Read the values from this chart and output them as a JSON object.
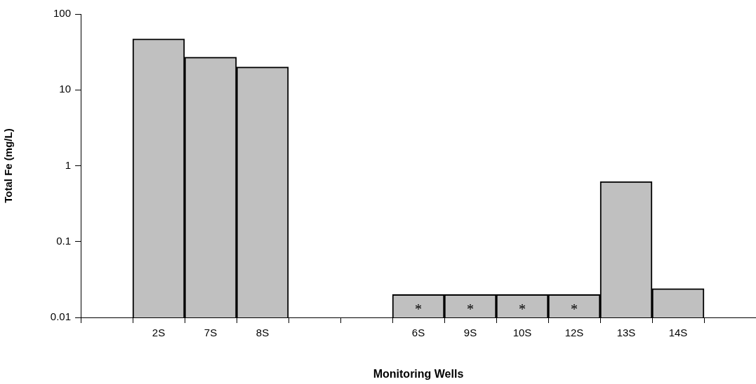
{
  "chart_data": {
    "type": "bar",
    "xlabel": "Monitoring Wells",
    "ylabel": "Total Fe (mg/L)",
    "categories": [
      null,
      "2S",
      "7S",
      "8S",
      null,
      null,
      "6S",
      "9S",
      "10S",
      "12S",
      "13S",
      "14S",
      null
    ],
    "values": [
      null,
      47,
      27,
      20,
      null,
      null,
      0.02,
      0.02,
      0.02,
      0.02,
      0.62,
      0.024,
      null
    ],
    "color": "#c0c0c0",
    "log": "y",
    "ylim": [
      0.01,
      100
    ],
    "yticks": [
      0.01,
      0.1,
      1,
      10,
      100
    ],
    "grid": false,
    "legend": false,
    "value_labels": [
      null,
      null,
      null,
      null,
      null,
      null,
      "*",
      "*",
      "*",
      "*",
      null,
      null,
      null
    ]
  }
}
